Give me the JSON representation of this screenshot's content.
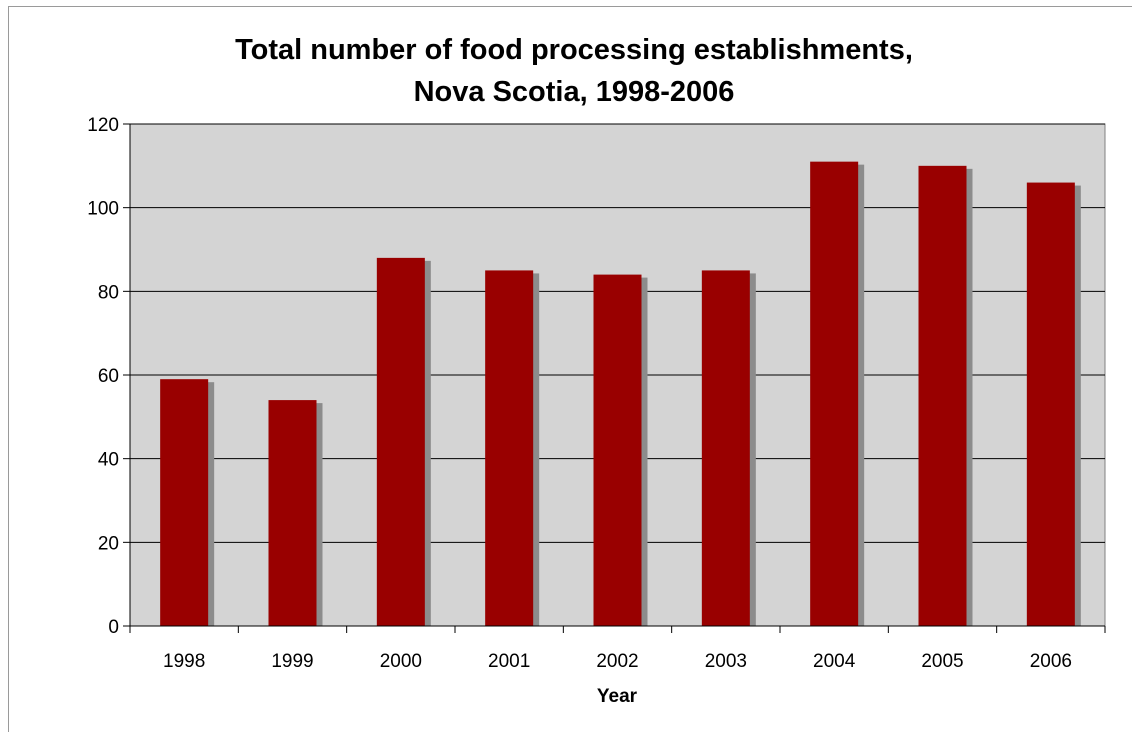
{
  "chart_data": {
    "type": "bar",
    "title_lines": [
      "Total number of food processing establishments,",
      "Nova Scotia, 1998-2006"
    ],
    "xlabel": "Year",
    "ylabel": "",
    "categories": [
      "1998",
      "1999",
      "2000",
      "2001",
      "2002",
      "2003",
      "2004",
      "2005",
      "2006"
    ],
    "values": [
      59,
      54,
      88,
      85,
      84,
      85,
      111,
      110,
      106
    ],
    "ylim": [
      0,
      120
    ],
    "yticks": [
      "0",
      "20",
      "40",
      "60",
      "80",
      "100",
      "120"
    ],
    "grid": true,
    "legend": "none",
    "colors": {
      "bar": "#990000",
      "bar_shadow": "#8c8c8c",
      "plot_background": "#d4d4d4",
      "gridline": "#000000"
    }
  }
}
